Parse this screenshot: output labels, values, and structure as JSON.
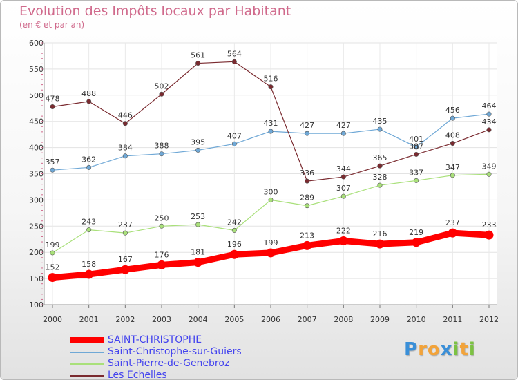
{
  "chart_data": {
    "type": "line",
    "title": "Evolution des Impôts locaux par Habitant",
    "subtitle": "(en € et par an)",
    "xlabel": "",
    "ylabel": "",
    "ylim": [
      100,
      600
    ],
    "yticks": [
      "100",
      "150",
      "200",
      "250",
      "300",
      "350",
      "400",
      "450",
      "500",
      "550",
      "600"
    ],
    "categories": [
      "2000",
      "2001",
      "2002",
      "2003",
      "2004",
      "2005",
      "2006",
      "2007",
      "2008",
      "2009",
      "2010",
      "2011",
      "2012"
    ],
    "grid": true,
    "legend_position": "bottom-left",
    "series": [
      {
        "name": "SAINT-CHRISTOPHE",
        "color": "#ff0000",
        "bold": true,
        "values": [
          152,
          158,
          167,
          176,
          181,
          196,
          199,
          213,
          222,
          216,
          219,
          237,
          233
        ]
      },
      {
        "name": "Saint-Christophe-sur-Guiers",
        "color": "#6fa8d6",
        "bold": false,
        "values": [
          357,
          362,
          384,
          388,
          395,
          407,
          431,
          427,
          427,
          435,
          401,
          456,
          464
        ]
      },
      {
        "name": "Saint-Pierre-de-Genebroz",
        "color": "#a9e07a",
        "bold": false,
        "values": [
          199,
          243,
          237,
          250,
          253,
          242,
          300,
          289,
          307,
          328,
          337,
          347,
          349
        ]
      },
      {
        "name": "Les Echelles",
        "color": "#7a2a2f",
        "bold": false,
        "values": [
          478,
          488,
          446,
          502,
          561,
          564,
          516,
          336,
          344,
          365,
          387,
          408,
          434
        ]
      }
    ]
  },
  "logo": {
    "letters": [
      "P",
      "r",
      "o",
      "x",
      "i",
      "t",
      "i"
    ],
    "colors": [
      "#3a8fd8",
      "#f2a33a",
      "#f2a33a",
      "#3a8fd8",
      "#7cc242",
      "#f2a33a",
      "#7cc242"
    ]
  }
}
